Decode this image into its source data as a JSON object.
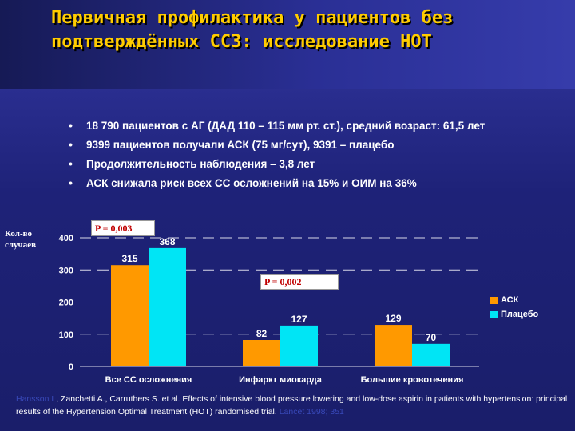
{
  "title": "Первичная профилактика у пациентов без подтверждённых ССЗ: исследование НОТ",
  "bullets": [
    "18 790 пациентов с АГ (ДАД 110 – 115 мм рт. ст.), средний возраст: 61,5 лет",
    "9399 пациентов получали АСК (75 мг/сут), 9391 – плацебо",
    "Продолжительность наблюдения – 3,8 лет",
    "АСК снижала риск всех СС осложнений на 15% и ОИМ на 36%"
  ],
  "p_values": [
    "P = 0,003",
    "P = 0,002"
  ],
  "reference": {
    "faded_lead": "Hansson L",
    "text": ", Zanchetti A., Carruthers S. et al. Effects of intensive blood pressure lowering and low-dose aspirin in patients with hypertension: principal results of the Hypertension Optimal Treatment (HOT) randomised trial.",
    "faded_tail": "Lancet 1998; 351"
  },
  "colors": {
    "title": "#ffcc00",
    "ask": "#ff9900",
    "placebo": "#00e5f5",
    "background": "#1e2278"
  },
  "chart_data": {
    "type": "bar",
    "ylabel": "Кол-во случаев",
    "categories": [
      "Все СС осложнения",
      "Инфаркт миокарда",
      "Большие кровотечения"
    ],
    "series": [
      {
        "name": "АСК",
        "values": [
          315,
          82,
          129
        ]
      },
      {
        "name": "Плацебо",
        "values": [
          368,
          127,
          70
        ]
      }
    ],
    "yticks": [
      0,
      100,
      200,
      300,
      400
    ],
    "ylim": [
      0,
      400
    ],
    "grid": "dashed",
    "legend": "right"
  }
}
